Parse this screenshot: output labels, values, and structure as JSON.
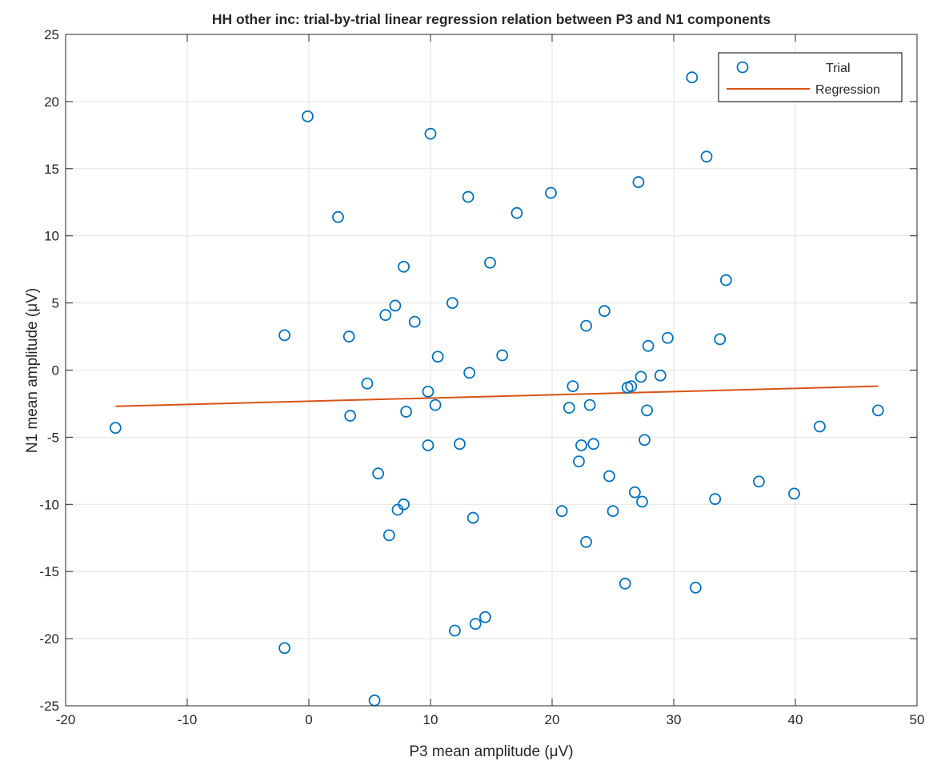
{
  "chart_data": {
    "type": "scatter",
    "title": "HH other inc: trial-by-trial linear regression relation between P3 and N1 components",
    "xlabel": "P3 mean amplitude (μV)",
    "ylabel": "N1 mean amplitude (μV)",
    "xlim": [
      -20,
      50
    ],
    "ylim": [
      -25,
      25
    ],
    "xticks": [
      -20,
      -10,
      0,
      10,
      20,
      30,
      40,
      50
    ],
    "yticks": [
      -25,
      -20,
      -15,
      -10,
      -5,
      0,
      5,
      10,
      15,
      20,
      25
    ],
    "grid": true,
    "legend_position": "top-right",
    "series": [
      {
        "name": "Trial",
        "kind": "markers",
        "marker": "circle",
        "color": "#0072BD",
        "points": [
          [
            -15.9,
            -4.3
          ],
          [
            -2.0,
            2.6
          ],
          [
            -2.0,
            -20.7
          ],
          [
            -0.1,
            18.9
          ],
          [
            2.4,
            11.4
          ],
          [
            3.3,
            2.5
          ],
          [
            3.4,
            -3.4
          ],
          [
            4.8,
            -1.0
          ],
          [
            5.4,
            -24.6
          ],
          [
            5.7,
            -7.7
          ],
          [
            6.3,
            4.1
          ],
          [
            6.6,
            -12.3
          ],
          [
            7.1,
            4.8
          ],
          [
            7.3,
            -10.4
          ],
          [
            7.8,
            7.7
          ],
          [
            7.8,
            -10.0
          ],
          [
            8.0,
            -3.1
          ],
          [
            8.7,
            3.6
          ],
          [
            9.8,
            -1.6
          ],
          [
            9.8,
            -5.6
          ],
          [
            10.0,
            17.6
          ],
          [
            10.4,
            -2.6
          ],
          [
            10.6,
            1.0
          ],
          [
            11.8,
            5.0
          ],
          [
            12.0,
            -19.4
          ],
          [
            12.4,
            -5.5
          ],
          [
            13.1,
            12.9
          ],
          [
            13.2,
            -0.2
          ],
          [
            13.5,
            -11.0
          ],
          [
            13.7,
            -18.9
          ],
          [
            14.5,
            -18.4
          ],
          [
            14.9,
            8.0
          ],
          [
            15.9,
            1.1
          ],
          [
            17.1,
            11.7
          ],
          [
            19.9,
            13.2
          ],
          [
            20.8,
            -10.5
          ],
          [
            21.4,
            -2.8
          ],
          [
            21.7,
            -1.2
          ],
          [
            22.2,
            -6.8
          ],
          [
            22.4,
            -5.6
          ],
          [
            22.8,
            3.3
          ],
          [
            22.8,
            -12.8
          ],
          [
            23.1,
            -2.6
          ],
          [
            23.4,
            -5.5
          ],
          [
            24.3,
            4.4
          ],
          [
            24.7,
            -7.9
          ],
          [
            25.0,
            -10.5
          ],
          [
            26.0,
            -15.9
          ],
          [
            26.2,
            -1.3
          ],
          [
            26.5,
            -1.2
          ],
          [
            26.8,
            -9.1
          ],
          [
            27.1,
            14.0
          ],
          [
            27.3,
            -0.5
          ],
          [
            27.4,
            -9.8
          ],
          [
            27.6,
            -5.2
          ],
          [
            27.8,
            -3.0
          ],
          [
            27.9,
            1.8
          ],
          [
            28.9,
            -0.4
          ],
          [
            29.5,
            2.4
          ],
          [
            31.5,
            21.8
          ],
          [
            31.8,
            -16.2
          ],
          [
            32.7,
            15.9
          ],
          [
            33.4,
            -9.6
          ],
          [
            33.8,
            2.3
          ],
          [
            34.3,
            6.7
          ],
          [
            37.0,
            -8.3
          ],
          [
            39.9,
            -9.2
          ],
          [
            42.0,
            -4.2
          ],
          [
            46.8,
            -3.0
          ]
        ]
      },
      {
        "name": "Regression",
        "kind": "line",
        "color": "#D95319",
        "points": [
          [
            -15.9,
            -2.7
          ],
          [
            46.8,
            -1.2
          ]
        ]
      }
    ]
  }
}
